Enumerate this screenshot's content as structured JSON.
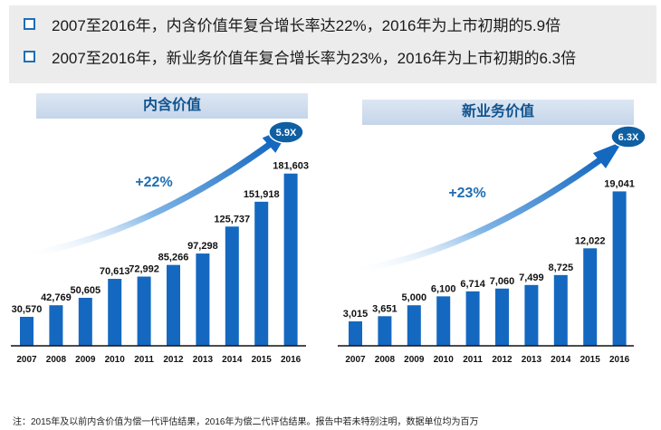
{
  "bullets": [
    "2007至2016年，内含价值年复合增长率达22%，2016年为上市初期的5.9倍",
    "2007至2016年，新业务价值年复合增长率为23%，2016年为上市初期的6.3倍"
  ],
  "chart_data": [
    {
      "type": "bar",
      "title": "内含价值",
      "categories": [
        "2007",
        "2008",
        "2009",
        "2010",
        "2011",
        "2012",
        "2013",
        "2014",
        "2015",
        "2016"
      ],
      "values": [
        30570,
        42769,
        50605,
        70613,
        72992,
        85266,
        97298,
        125737,
        151918,
        181603
      ],
      "labels": [
        "30,570",
        "42,769",
        "50,605",
        "70,613",
        "72,992",
        "85,266",
        "97,298",
        "125,737",
        "151,918",
        "181,603"
      ],
      "growth_label": "+22%",
      "multiple_badge": "5.9X",
      "ylim": [
        0,
        210000
      ]
    },
    {
      "type": "bar",
      "title": "新业务价值",
      "categories": [
        "2007",
        "2008",
        "2009",
        "2010",
        "2011",
        "2012",
        "2013",
        "2014",
        "2015",
        "2016"
      ],
      "values": [
        3015,
        3651,
        5000,
        6100,
        6714,
        7060,
        7499,
        8725,
        12022,
        19041
      ],
      "labels": [
        "3,015",
        "3,651",
        "5,000",
        "6,100",
        "6,714",
        "7,060",
        "7,499",
        "8,725",
        "12,022",
        "19,041"
      ],
      "growth_label": "+23%",
      "multiple_badge": "6.3X",
      "ylim": [
        0,
        24000
      ]
    }
  ],
  "footnote": "注：2015年及以前内含价值为偿一代评估结果，2016年为偿二代评估结果。报告中若未特别注明，数据单位均为百万",
  "colors": {
    "bar": "#1468c0",
    "accent": "#1f6fb2",
    "badge": "#0f5fa3"
  }
}
